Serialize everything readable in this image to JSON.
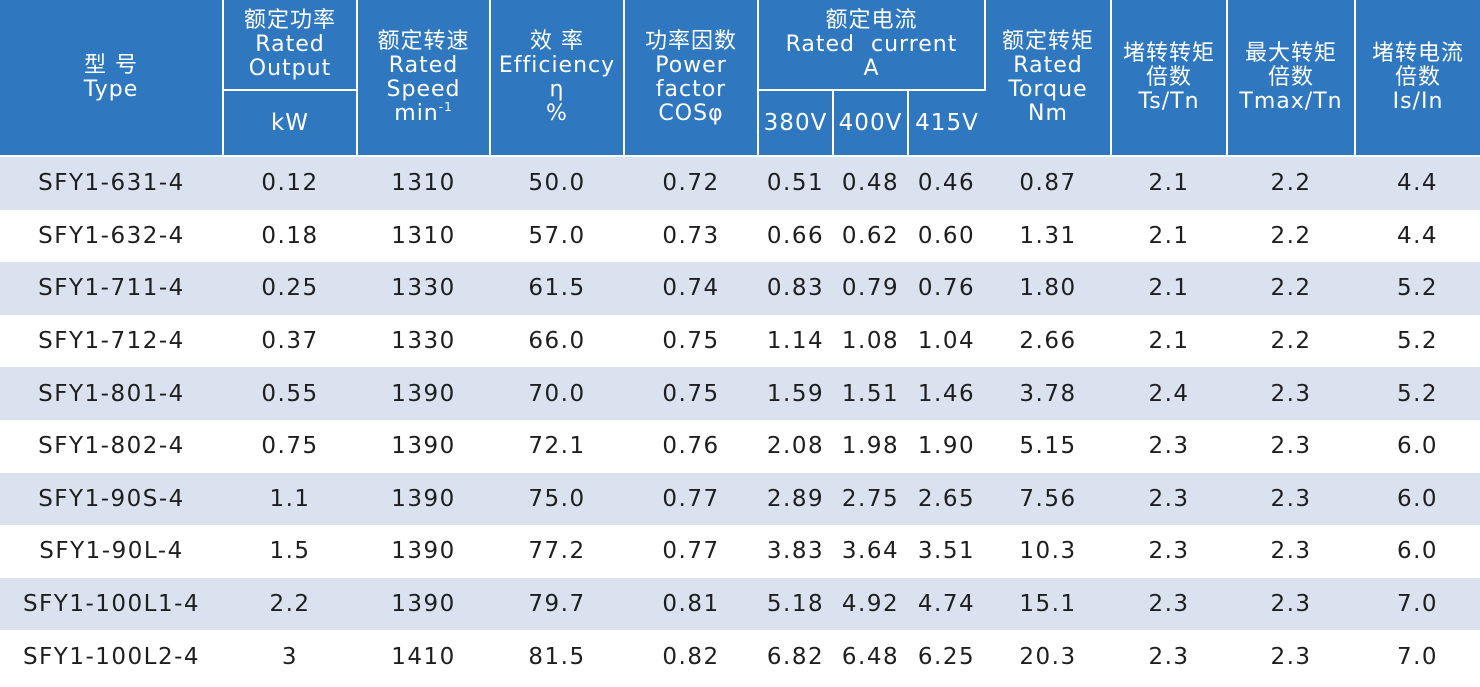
{
  "header": {
    "type": [
      "型  号",
      "Type"
    ],
    "rated_output": [
      "额定功率",
      "Rated",
      "Output"
    ],
    "rated_output_unit": "kW",
    "rated_speed": [
      "额定转速",
      "Rated",
      "Speed"
    ],
    "rated_speed_unit": "min",
    "rated_speed_unit_sup": "-1",
    "efficiency": [
      "效 率",
      "Efficiency",
      "η",
      "%"
    ],
    "power_factor": [
      "功率因数",
      "Power",
      "factor",
      "COSφ"
    ],
    "rated_current": [
      "额定电流",
      "Rated  current",
      "A"
    ],
    "voltages": [
      "380V",
      "400V",
      "415V"
    ],
    "rated_torque": [
      "额定转矩",
      "Rated",
      "Torque",
      "Nm"
    ],
    "locked_torque": [
      "堵转转矩",
      "倍数",
      "Ts/Tn"
    ],
    "max_torque": [
      "最大转矩",
      "倍数",
      "Tmax/Tn"
    ],
    "locked_current": [
      "堵转电流",
      "倍数",
      "Is/In"
    ]
  },
  "rows": [
    [
      "SFY1-631-4",
      "0.12",
      "1310",
      "50.0",
      "0.72",
      "0.51",
      "0.48",
      "0.46",
      "0.87",
      "2.1",
      "2.2",
      "4.4"
    ],
    [
      "SFY1-632-4",
      "0.18",
      "1310",
      "57.0",
      "0.73",
      "0.66",
      "0.62",
      "0.60",
      "1.31",
      "2.1",
      "2.2",
      "4.4"
    ],
    [
      "SFY1-711-4",
      "0.25",
      "1330",
      "61.5",
      "0.74",
      "0.83",
      "0.79",
      "0.76",
      "1.80",
      "2.1",
      "2.2",
      "5.2"
    ],
    [
      "SFY1-712-4",
      "0.37",
      "1330",
      "66.0",
      "0.75",
      "1.14",
      "1.08",
      "1.04",
      "2.66",
      "2.1",
      "2.2",
      "5.2"
    ],
    [
      "SFY1-801-4",
      "0.55",
      "1390",
      "70.0",
      "0.75",
      "1.59",
      "1.51",
      "1.46",
      "3.78",
      "2.4",
      "2.3",
      "5.2"
    ],
    [
      "SFY1-802-4",
      "0.75",
      "1390",
      "72.1",
      "0.76",
      "2.08",
      "1.98",
      "1.90",
      "5.15",
      "2.3",
      "2.3",
      "6.0"
    ],
    [
      "SFY1-90S-4",
      "1.1",
      "1390",
      "75.0",
      "0.77",
      "2.89",
      "2.75",
      "2.65",
      "7.56",
      "2.3",
      "2.3",
      "6.0"
    ],
    [
      "SFY1-90L-4",
      "1.5",
      "1390",
      "77.2",
      "0.77",
      "3.83",
      "3.64",
      "3.51",
      "10.3",
      "2.3",
      "2.3",
      "6.0"
    ],
    [
      "SFY1-100L1-4",
      "2.2",
      "1390",
      "79.7",
      "0.81",
      "5.18",
      "4.92",
      "4.74",
      "15.1",
      "2.3",
      "2.3",
      "7.0"
    ],
    [
      "SFY1-100L2-4",
      "3",
      "1410",
      "81.5",
      "0.82",
      "6.82",
      "6.48",
      "6.25",
      "20.3",
      "2.3",
      "2.3",
      "7.0"
    ]
  ],
  "colors": {
    "header_bg": "#2f78bf",
    "header_text": "#ffffff",
    "stripe_bg": "#d9e2ee",
    "body_text": "#1e1e1e"
  }
}
